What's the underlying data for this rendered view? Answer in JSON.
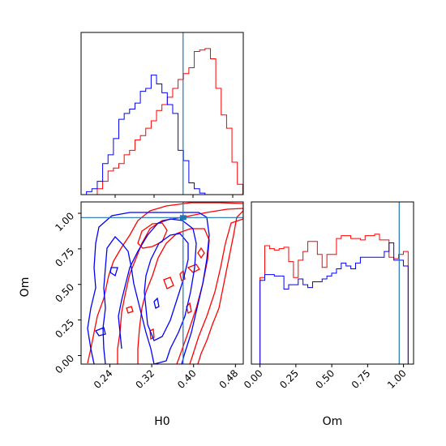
{
  "colors": {
    "series_a": "#ff0000",
    "series_b": "#0000ff",
    "truth": "#1f77b4"
  },
  "chart_data": {
    "type": "corner",
    "truth": {
      "H0": 0.38,
      "Om": 0.97
    },
    "panels": [
      {
        "id": "hist-h0",
        "type": "histogram",
        "x_range": [
          0.185,
          0.495
        ],
        "bins": {
          "start": 0.185,
          "width": 0.0103
        },
        "series": [
          {
            "color": "series_a",
            "counts": [
              0,
              0,
              0,
              0.04,
              0.09,
              0.16,
              0.18,
              0.21,
              0.27,
              0.3,
              0.37,
              0.4,
              0.45,
              0.5,
              0.57,
              0.61,
              0.66,
              0.72,
              0.78,
              0.82,
              0.86,
              0.97,
              0.98,
              0.99,
              0.92,
              0.72,
              0.54,
              0.45,
              0.22,
              0.07
            ]
          },
          {
            "color": "series_b",
            "counts": [
              0,
              0.02,
              0.04,
              0.09,
              0.21,
              0.27,
              0.38,
              0.51,
              0.55,
              0.58,
              0.62,
              0.7,
              0.72,
              0.81,
              0.75,
              0.69,
              0.61,
              0.55,
              0.3,
              0.23,
              0.08,
              0.04,
              0.01,
              0,
              0,
              0,
              0,
              0,
              0,
              0
            ]
          }
        ]
      },
      {
        "id": "contour-h0-om",
        "type": "contour",
        "xlabel": "H0",
        "ylabel": "Om",
        "x_range": [
          0.185,
          0.495
        ],
        "y_range": [
          -0.06,
          1.08
        ],
        "x_ticks": [
          "0.24",
          "0.32",
          "0.40",
          "0.48"
        ],
        "y_ticks": [
          "0.00",
          "0.25",
          "0.50",
          "0.75",
          "1.00"
        ]
      },
      {
        "id": "hist-om",
        "type": "histogram",
        "xlabel": "Om",
        "x_range": [
          -0.06,
          1.07
        ],
        "x_ticks": [
          "0.00",
          "0.25",
          "0.50",
          "0.75",
          "1.00"
        ],
        "bins": {
          "start": 0.0,
          "width": 0.0333
        },
        "series": [
          {
            "color": "series_a",
            "counts": [
              0.6,
              0.82,
              0.8,
              0.79,
              0.8,
              0.81,
              0.71,
              0.6,
              0.72,
              0.78,
              0.85,
              0.85,
              0.76,
              0.67,
              0.76,
              0.76,
              0.87,
              0.89,
              0.89,
              0.87,
              0.87,
              0.86,
              0.89,
              0.89,
              0.9,
              0.86,
              0.86,
              0.74,
              0.73,
              0.76,
              0.78
            ]
          },
          {
            "color": "series_b",
            "counts": [
              0.58,
              0.62,
              0.62,
              0.61,
              0.61,
              0.52,
              0.55,
              0.55,
              0.59,
              0.55,
              0.53,
              0.57,
              0.57,
              0.59,
              0.61,
              0.63,
              0.66,
              0.7,
              0.68,
              0.66,
              0.7,
              0.74,
              0.74,
              0.74,
              0.74,
              0.74,
              0.78,
              0.84,
              0.72,
              0.72,
              0.68
            ]
          }
        ]
      }
    ]
  }
}
